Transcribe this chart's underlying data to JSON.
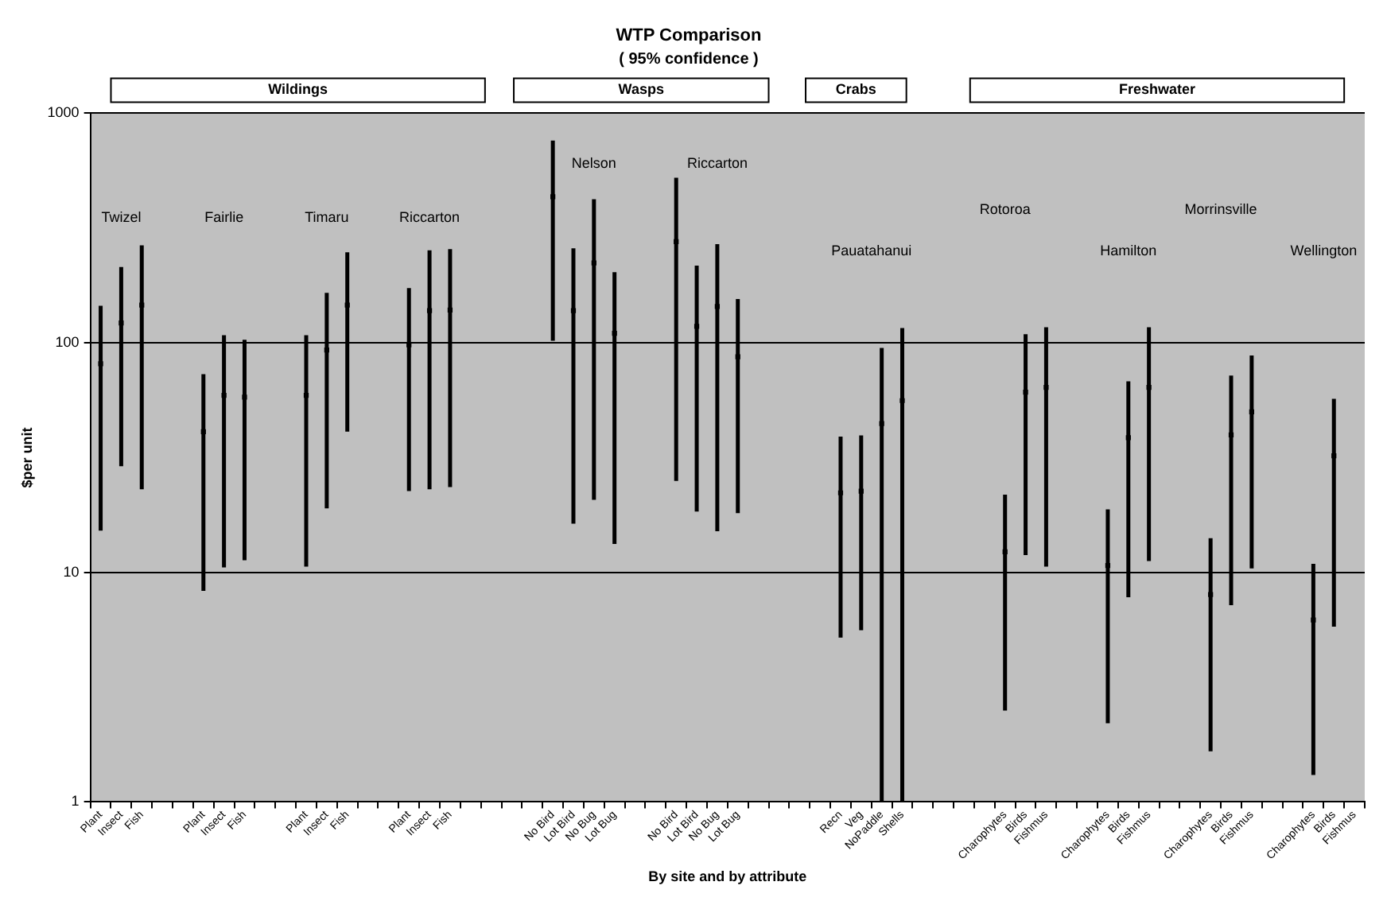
{
  "chart_data": {
    "type": "scatter",
    "title": "WTP Comparison",
    "subtitle": "( 95% confidence )",
    "xlabel": "By site and by attribute",
    "ylabel": "$per unit",
    "categories": [
      "Plant",
      "Insect",
      "Fish",
      null,
      null,
      "Plant",
      "Insect",
      "Fish",
      null,
      null,
      "Plant",
      "Insect",
      "Fish",
      null,
      null,
      "Plant",
      "Insect",
      "Fish",
      null,
      null,
      null,
      null,
      "No Bird",
      "Lot Bird",
      "No Bug",
      "Lot Bug",
      null,
      null,
      "No Bird",
      "Lot Bird",
      "No Bug",
      "Lot Bug",
      null,
      null,
      null,
      null,
      "Recn",
      "Veg",
      "NoPaddle",
      "Shells",
      null,
      null,
      null,
      null,
      "Charophytes",
      "Birds",
      "Fishmus",
      null,
      null,
      "Charophytes",
      "Birds",
      "Fishmus",
      null,
      null,
      "Charophytes",
      "Birds",
      "Fishmus",
      null,
      null,
      "Charophytes",
      "Birds",
      "Fishmus"
    ],
    "series": [
      {
        "color": "#000000",
        "values": [
          81,
          122,
          146,
          null,
          null,
          41,
          59,
          58,
          null,
          null,
          59,
          93,
          146,
          null,
          null,
          98,
          138,
          139,
          null,
          null,
          null,
          null,
          433,
          138,
          223,
          110,
          null,
          null,
          276,
          118,
          144,
          87,
          null,
          null,
          null,
          null,
          22.2,
          22.6,
          44.5,
          56,
          null,
          null,
          null,
          null,
          12.3,
          61,
          64,
          null,
          null,
          10.7,
          38.6,
          64,
          null,
          null,
          8,
          39.7,
          50,
          null,
          null,
          6.2,
          32.2,
          null
        ],
        "errors": [
          [
            15.2,
            145
          ],
          [
            29,
            214
          ],
          [
            23,
            266
          ],
          null,
          null,
          [
            8.3,
            73
          ],
          [
            10.5,
            108
          ],
          [
            11.3,
            103
          ],
          null,
          null,
          [
            10.6,
            108
          ],
          [
            19,
            165
          ],
          [
            41,
            248
          ],
          null,
          null,
          [
            22.6,
            173
          ],
          [
            23,
            253
          ],
          [
            23.5,
            256
          ],
          null,
          null,
          null,
          null,
          [
            102,
            761
          ],
          [
            16.3,
            258
          ],
          [
            20.7,
            422
          ],
          [
            13.3,
            203
          ],
          null,
          null,
          [
            25,
            524
          ],
          [
            18.4,
            217
          ],
          [
            15.1,
            269
          ],
          [
            18.1,
            155
          ],
          null,
          null,
          null,
          null,
          [
            5.2,
            39
          ],
          [
            5.6,
            39.5
          ],
          [
            1,
            95
          ],
          [
            1,
            116
          ],
          null,
          null,
          null,
          null,
          [
            2.5,
            21.8
          ],
          [
            11.9,
            109
          ],
          [
            10.6,
            117
          ],
          null,
          null,
          [
            2.2,
            18.8
          ],
          [
            7.8,
            68
          ],
          [
            11.2,
            117
          ],
          null,
          null,
          [
            1.66,
            14.1
          ],
          [
            7.2,
            72
          ],
          [
            10.4,
            88
          ],
          null,
          null,
          [
            1.31,
            10.9
          ],
          [
            5.8,
            57
          ],
          null
        ]
      }
    ],
    "ylim": [
      1,
      1000
    ],
    "yticks": [
      1,
      10,
      100,
      1000
    ],
    "log": "y",
    "grid": "y",
    "legend": false,
    "marker": "square",
    "annotations": [
      "Wildings",
      "Wasps",
      "Crabs",
      "Freshwater",
      "Twizel",
      "Fairlie",
      "Timaru",
      "Riccarton",
      "Nelson",
      "Riccarton",
      "Pauatahanui",
      "Rotoroa",
      "Hamilton",
      "Morrinsville",
      "Wellington"
    ]
  }
}
